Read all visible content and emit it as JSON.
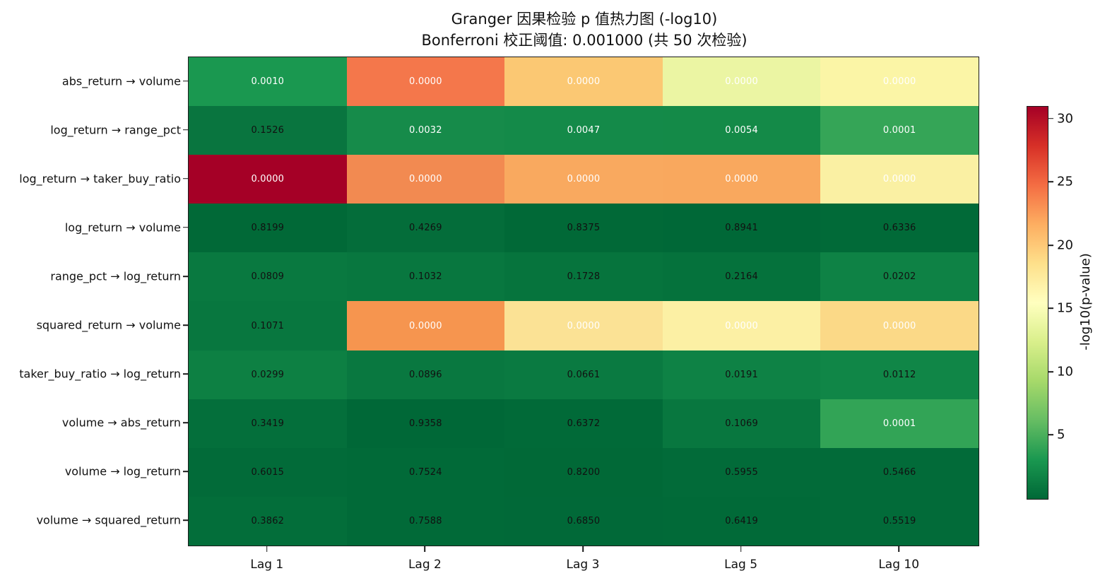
{
  "title": {
    "line1": "Granger 因果检验 p 值热力图 (-log10)",
    "line2": "Bonferroni 校正阈值: 0.001000 (共 50 次检验)"
  },
  "chart_data": {
    "type": "heatmap",
    "rows": [
      "abs_return → volume",
      "log_return → range_pct",
      "log_return → taker_buy_ratio",
      "log_return → volume",
      "range_pct → log_return",
      "squared_return → volume",
      "taker_buy_ratio → log_return",
      "volume → abs_return",
      "volume → log_return",
      "volume → squared_return"
    ],
    "columns": [
      "Lag 1",
      "Lag 2",
      "Lag 3",
      "Lag 5",
      "Lag 10"
    ],
    "p_value_labels": [
      [
        "0.0010",
        "0.0000",
        "0.0000",
        "0.0000",
        "0.0000"
      ],
      [
        "0.1526",
        "0.0032",
        "0.0047",
        "0.0054",
        "0.0001"
      ],
      [
        "0.0000",
        "0.0000",
        "0.0000",
        "0.0000",
        "0.0000"
      ],
      [
        "0.8199",
        "0.4269",
        "0.8375",
        "0.8941",
        "0.6336"
      ],
      [
        "0.0809",
        "0.1032",
        "0.1728",
        "0.2164",
        "0.0202"
      ],
      [
        "0.1071",
        "0.0000",
        "0.0000",
        "0.0000",
        "0.0000"
      ],
      [
        "0.0299",
        "0.0896",
        "0.0661",
        "0.0191",
        "0.0112"
      ],
      [
        "0.3419",
        "0.9358",
        "0.6372",
        "0.1069",
        "0.0001"
      ],
      [
        "0.6015",
        "0.7524",
        "0.8200",
        "0.5955",
        "0.5466"
      ],
      [
        "0.3862",
        "0.7588",
        "0.6850",
        "0.6419",
        "0.5519"
      ]
    ],
    "neglog10": [
      [
        3.0,
        24.5,
        20.1,
        13.9,
        16.3
      ],
      [
        0.816,
        2.495,
        2.328,
        2.268,
        4.0
      ],
      [
        30.9,
        23.1,
        21.9,
        21.9,
        16.8
      ],
      [
        0.086,
        0.37,
        0.077,
        0.049,
        0.198
      ],
      [
        1.092,
        0.986,
        0.763,
        0.665,
        1.695
      ],
      [
        0.97,
        22.6,
        18.3,
        16.6,
        19.1
      ],
      [
        1.524,
        1.048,
        1.18,
        1.719,
        1.951
      ],
      [
        0.466,
        0.029,
        0.196,
        0.971,
        4.0
      ],
      [
        0.221,
        0.124,
        0.086,
        0.225,
        0.262
      ],
      [
        0.413,
        0.12,
        0.164,
        0.192,
        0.258
      ]
    ],
    "cell_colors": [
      [
        "#1a9850",
        "#f4774b",
        "#fbc873",
        "#ebf5a3",
        "#fbf5a6"
      ],
      [
        "#09753f",
        "#168b4a",
        "#148a49",
        "#148a48",
        "#35a557"
      ],
      [
        "#a50026",
        "#f28a51",
        "#f9a95f",
        "#f9a85e",
        "#faf0a3"
      ],
      [
        "#016937",
        "#046d3a",
        "#016937",
        "#006837",
        "#016a38"
      ],
      [
        "#097940",
        "#08773f",
        "#06743d",
        "#05723c",
        "#0e8245"
      ],
      [
        "#08773f",
        "#f6954f",
        "#fbe295",
        "#fcf0a4",
        "#fbd987"
      ],
      [
        "#0d8043",
        "#097840",
        "#0a7a41",
        "#0e8245",
        "#108647"
      ],
      [
        "#046f3b",
        "#006837",
        "#016a38",
        "#08773f",
        "#32a456"
      ],
      [
        "#026b39",
        "#016a38",
        "#016937",
        "#026b39",
        "#026b39"
      ],
      [
        "#036e3a",
        "#016a38",
        "#016938",
        "#016a38",
        "#026b39"
      ]
    ],
    "text_color_rule": {
      "white_if_neglog10_above": 2.0,
      "white": "#ffffff",
      "black": "#111111"
    },
    "colorbar": {
      "label": "-log10(p-value)",
      "ticks": [
        30,
        25,
        20,
        15,
        10,
        5
      ],
      "vmin": 0,
      "vmax": 31,
      "colormap": "RdYlGn_r",
      "gradient_top_to_bottom": [
        "#a50026",
        "#d73027",
        "#f46d43",
        "#fdae61",
        "#fee08b",
        "#ffffbf",
        "#d9ef8b",
        "#a6d96a",
        "#66bd63",
        "#1a9850",
        "#006837"
      ]
    },
    "legend_position": "right",
    "grid": false
  }
}
